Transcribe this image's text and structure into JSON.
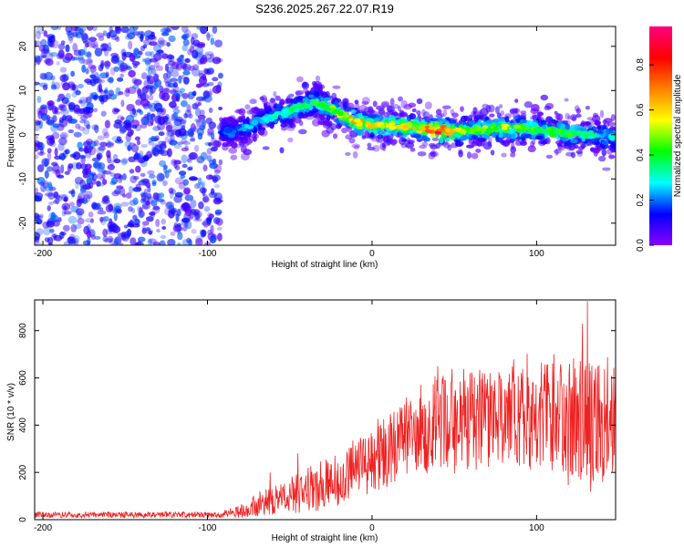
{
  "title": "S236.2025.267.22.07.R19",
  "chart_data": [
    {
      "type": "heatmap",
      "xlabel": "Height of straight line (km)",
      "ylabel": "Frequency (Hz)",
      "xlim": [
        -205,
        148
      ],
      "ylim": [
        -25,
        24.5
      ],
      "xticks": [
        -200,
        -100,
        0,
        100
      ],
      "yticks": [
        -20,
        -10,
        0,
        10,
        20
      ],
      "colorbar": {
        "label": "Normalized spectral amplitude",
        "range": [
          0,
          0.97
        ],
        "ticks": [
          0.0,
          0.2,
          0.4,
          0.6,
          0.8
        ],
        "colors": [
          "#8c00ff",
          "#0000ff",
          "#00ffff",
          "#00ff00",
          "#ffff00",
          "#ff8000",
          "#ff0000",
          "#ff0080"
        ]
      },
      "noise_region": {
        "x": [
          -205,
          -92
        ],
        "amplitude": [
          0.04,
          0.2
        ]
      },
      "ridge": [
        {
          "x": -92,
          "y": 0.5,
          "amp": 0.18
        },
        {
          "x": -82,
          "y": 1.0,
          "amp": 0.22
        },
        {
          "x": -72,
          "y": 2.5,
          "amp": 0.28
        },
        {
          "x": -62,
          "y": 4.0,
          "amp": 0.32
        },
        {
          "x": -52,
          "y": 5.0,
          "amp": 0.36
        },
        {
          "x": -42,
          "y": 6.5,
          "amp": 0.4
        },
        {
          "x": -34,
          "y": 7.5,
          "amp": 0.45
        },
        {
          "x": -26,
          "y": 6.0,
          "amp": 0.5
        },
        {
          "x": -18,
          "y": 4.5,
          "amp": 0.55
        },
        {
          "x": -10,
          "y": 2.8,
          "amp": 0.7
        },
        {
          "x": 0,
          "y": 2.2,
          "amp": 0.6
        },
        {
          "x": 10,
          "y": 2.0,
          "amp": 0.55
        },
        {
          "x": 20,
          "y": 1.8,
          "amp": 0.6
        },
        {
          "x": 30,
          "y": 1.5,
          "amp": 0.6
        },
        {
          "x": 40,
          "y": 1.0,
          "amp": 0.92
        },
        {
          "x": 50,
          "y": 0.8,
          "amp": 0.6
        },
        {
          "x": 60,
          "y": 1.0,
          "amp": 0.45
        },
        {
          "x": 75,
          "y": 1.5,
          "amp": 0.55
        },
        {
          "x": 90,
          "y": 1.5,
          "amp": 0.5
        },
        {
          "x": 100,
          "y": 1.2,
          "amp": 0.45
        },
        {
          "x": 115,
          "y": 0.5,
          "amp": 0.45
        },
        {
          "x": 130,
          "y": 0.0,
          "amp": 0.4
        },
        {
          "x": 148,
          "y": -0.5,
          "amp": 0.35
        }
      ]
    },
    {
      "type": "line",
      "xlabel": "Height of straight line (km)",
      "ylabel": "SNR (10 * v/v)",
      "xlim": [
        -205,
        148
      ],
      "ylim": [
        0,
        930
      ],
      "xticks": [
        -200,
        -100,
        0,
        100
      ],
      "yticks": [
        0,
        200,
        400,
        600,
        800
      ],
      "line_color": "#ee2222",
      "snr_envelope": [
        {
          "x": -205,
          "mean": 18,
          "spread": 15
        },
        {
          "x": -100,
          "mean": 18,
          "spread": 15
        },
        {
          "x": -85,
          "mean": 25,
          "spread": 25
        },
        {
          "x": -70,
          "mean": 60,
          "spread": 55
        },
        {
          "x": -50,
          "mean": 100,
          "spread": 80
        },
        {
          "x": -30,
          "mean": 150,
          "spread": 110
        },
        {
          "x": -10,
          "mean": 220,
          "spread": 140
        },
        {
          "x": 10,
          "mean": 300,
          "spread": 170
        },
        {
          "x": 30,
          "mean": 380,
          "spread": 200
        },
        {
          "x": 50,
          "mean": 420,
          "spread": 230
        },
        {
          "x": 70,
          "mean": 430,
          "spread": 250
        },
        {
          "x": 90,
          "mean": 440,
          "spread": 260
        },
        {
          "x": 110,
          "mean": 430,
          "spread": 280
        },
        {
          "x": 130,
          "mean": 420,
          "spread": 300
        },
        {
          "x": 148,
          "mean": 400,
          "spread": 300
        }
      ],
      "peaks": [
        {
          "x": -62,
          "y": 200
        },
        {
          "x": -45,
          "y": 280
        },
        {
          "x": 40,
          "y": 600
        },
        {
          "x": 40,
          "y": 650
        },
        {
          "x": 115,
          "y": 630
        },
        {
          "x": 128,
          "y": 830
        },
        {
          "x": 131,
          "y": 925
        },
        {
          "x": 143,
          "y": 540
        }
      ]
    }
  ]
}
